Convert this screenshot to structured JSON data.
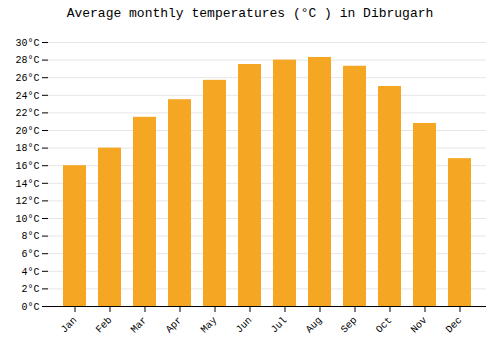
{
  "chart_data": {
    "type": "bar",
    "title": "Average monthly temperatures (°C ) in Dibrugarh",
    "categories": [
      "Jan",
      "Feb",
      "Mar",
      "Apr",
      "May",
      "Jun",
      "Jul",
      "Aug",
      "Sep",
      "Oct",
      "Nov",
      "Dec"
    ],
    "values": [
      16.0,
      18.0,
      21.5,
      23.5,
      25.7,
      27.5,
      28.0,
      28.3,
      27.3,
      25.0,
      20.8,
      16.8
    ],
    "color": "#F5A623",
    "ylim": [
      0,
      30
    ],
    "yticks": [
      {
        "value": 0,
        "label": "0°C"
      },
      {
        "value": 2,
        "label": "2°C"
      },
      {
        "value": 4,
        "label": "4°C"
      },
      {
        "value": 6,
        "label": "6°C"
      },
      {
        "value": 8,
        "label": "8°C"
      },
      {
        "value": 10,
        "label": "10°C"
      },
      {
        "value": 12,
        "label": "12°C"
      },
      {
        "value": 14,
        "label": "14°C"
      },
      {
        "value": 16,
        "label": "16°C"
      },
      {
        "value": 18,
        "label": "18°C"
      },
      {
        "value": 20,
        "label": "20°C"
      },
      {
        "value": 22,
        "label": "22°C"
      },
      {
        "value": 24,
        "label": "24°C"
      },
      {
        "value": 26,
        "label": "26°C"
      },
      {
        "value": 28,
        "label": "28°C"
      },
      {
        "value": 30,
        "label": "30°C"
      }
    ],
    "grid": true
  }
}
